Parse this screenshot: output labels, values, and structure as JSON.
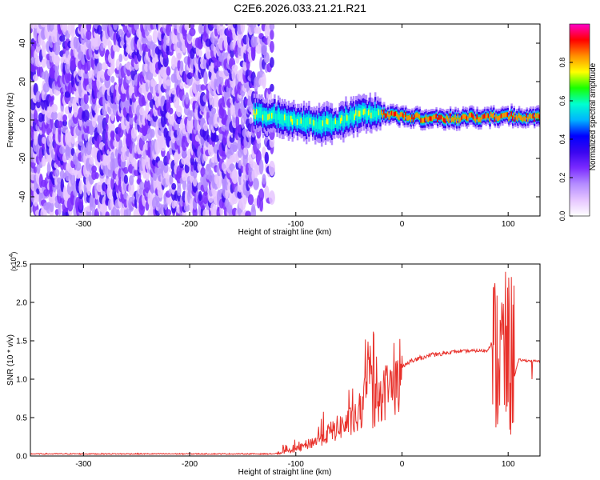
{
  "title": "C2E6.2026.033.21.21.R21",
  "colors": {
    "snr_line": "#e8302a",
    "axis": "#000000",
    "colormap": [
      "#ffffff",
      "#e6c6ff",
      "#b48cff",
      "#7b2bff",
      "#3a06f0",
      "#0000ff",
      "#00b4ff",
      "#00ffd0",
      "#19ff00",
      "#ffff00",
      "#ff9000",
      "#ff0000",
      "#ff00c8"
    ]
  },
  "chart_data": [
    {
      "type": "heatmap",
      "xlabel": "Height of straight line (km)",
      "ylabel": "Frequency (Hz)",
      "xlim": [
        -350,
        130
      ],
      "ylim": [
        -50,
        50
      ],
      "xticks": [
        -300,
        -200,
        -100,
        0,
        100
      ],
      "yticks": [
        -40,
        -20,
        0,
        20,
        40
      ],
      "colorbar": {
        "label": "Normalized spectral amplitude",
        "range": [
          0,
          1
        ],
        "ticks": [
          "0.0",
          "0.2",
          "0.4",
          "0.6",
          "0.8"
        ]
      },
      "features": {
        "noise_region_x": [
          -350,
          -130
        ],
        "signal_start_x": -140,
        "signal_center_hz": [
          [
            -140,
            3
          ],
          [
            -120,
            2
          ],
          [
            -100,
            0
          ],
          [
            -80,
            -2
          ],
          [
            -60,
            -1
          ],
          [
            -40,
            4
          ],
          [
            -20,
            3
          ],
          [
            0,
            2
          ],
          [
            20,
            1
          ],
          [
            60,
            1
          ],
          [
            100,
            2
          ],
          [
            130,
            1
          ]
        ]
      }
    },
    {
      "type": "line",
      "xlabel": "Height of straight line (km)",
      "ylabel": "SNR (10 * v/v)",
      "yscale_label": "(x10",
      "yscale_exp": "4",
      "xlim": [
        -350,
        130
      ],
      "ylim": [
        0,
        2.5
      ],
      "xticks": [
        -300,
        -200,
        -100,
        0,
        100
      ],
      "yticks": [
        "0.0",
        "0.5",
        "1.0",
        "1.5",
        "2.0",
        "2.5"
      ],
      "series": [
        {
          "x": [
            -350,
            -300,
            -250,
            -200,
            -150,
            -120,
            -100,
            -80,
            -60,
            -40,
            -30,
            -28,
            -20,
            -10,
            0,
            10,
            30,
            50,
            70,
            80,
            90,
            95,
            100,
            103,
            110,
            120,
            130
          ],
          "y": [
            0.02,
            0.02,
            0.02,
            0.02,
            0.02,
            0.03,
            0.1,
            0.25,
            0.45,
            0.6,
            1.2,
            0.75,
            0.95,
            1.1,
            1.15,
            1.25,
            1.32,
            1.36,
            1.37,
            1.37,
            1.6,
            2.2,
            2.5,
            0.9,
            1.25,
            1.24,
            1.23
          ]
        }
      ]
    }
  ]
}
